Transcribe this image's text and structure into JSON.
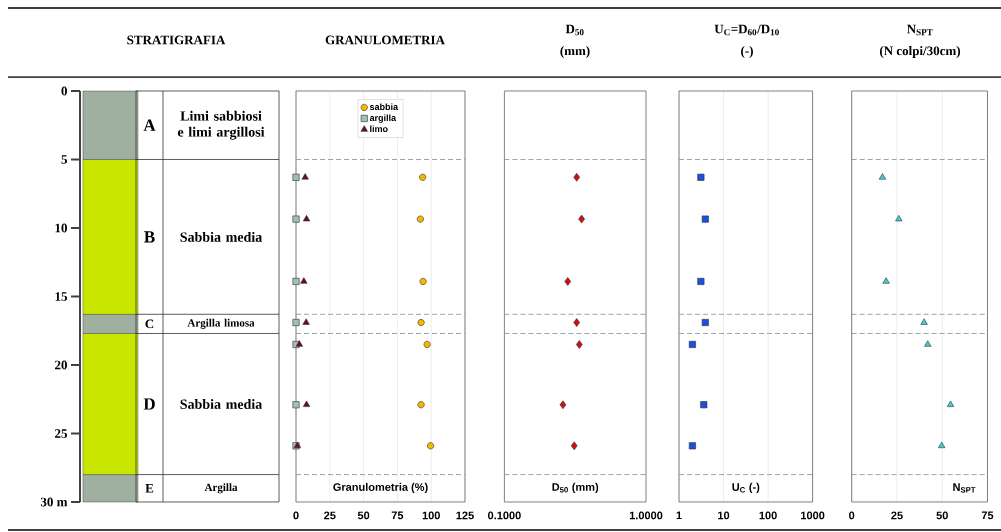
{
  "chart_data": [
    {
      "type": "bar",
      "stacked": true,
      "title": "STRATIGRAFIA",
      "categories": [
        null
      ],
      "ylim": [
        30,
        0
      ],
      "yticks": [
        0,
        5,
        10,
        15,
        20,
        25,
        {
          "value": 30,
          "label": "30 m"
        }
      ],
      "tick_labels": "y",
      "series": [
        {
          "name": "A",
          "color": "#9fb0a0",
          "values": [
            5
          ]
        },
        {
          "name": "B",
          "color": "#c8e600",
          "values": [
            11.3
          ]
        },
        {
          "name": "C",
          "color": "#9fb0a0",
          "values": [
            1.4
          ]
        },
        {
          "name": "D",
          "color": "#c8e600",
          "values": [
            10.3
          ]
        },
        {
          "name": "E",
          "color": "#9fb0a0",
          "values": [
            2
          ]
        }
      ],
      "annotations": [
        "Limi sabbiosi e limi argillosi",
        "Sabbia media",
        "Argilla limosa",
        "Sabbia media",
        "Argilla"
      ]
    },
    {
      "type": "scatter",
      "title": "GRANULOMETRIA",
      "xlabel": "Granulometria (%)",
      "xlim": [
        0,
        125
      ],
      "xticks": [
        0,
        25,
        50,
        75,
        100,
        125
      ],
      "ylim": [
        30,
        0
      ],
      "tick_labels": "x",
      "grid": "x",
      "legend": "top",
      "ref_lines": [
        {
          "axis": "y",
          "value": 5,
          "color": "#7f9f9f",
          "line_style": "dashed"
        },
        {
          "axis": "y",
          "value": 16.3,
          "color": "#7f9f9f",
          "line_style": "dashed"
        },
        {
          "axis": "y",
          "value": 17.7,
          "color": "#7f9f9f",
          "line_style": "dashed"
        },
        {
          "axis": "y",
          "value": 28,
          "color": "#7f9f9f",
          "line_style": "dashed"
        }
      ],
      "series": [
        {
          "name": "sabbia",
          "color": "#f5b800",
          "marker": "circle",
          "x": [
            93.7,
            92,
            94,
            92.5,
            97,
            92.5,
            99.5
          ],
          "values": [
            6.3,
            9.35,
            13.9,
            16.9,
            18.5,
            22.9,
            25.9
          ]
        },
        {
          "name": "argilla",
          "color": "#9fbfbf",
          "marker": "square",
          "x": [
            0,
            0,
            0,
            0,
            0,
            0,
            0
          ],
          "values": [
            6.3,
            9.35,
            13.9,
            16.9,
            18.5,
            22.9,
            25.9
          ]
        },
        {
          "name": "limo",
          "color": "#6b0f1a",
          "marker": "triangle",
          "x": [
            6.8,
            7.8,
            5.8,
            7.5,
            2.5,
            7.8,
            1
          ],
          "values": [
            6.3,
            9.35,
            13.9,
            16.9,
            18.5,
            22.9,
            25.9
          ]
        }
      ]
    },
    {
      "type": "scatter",
      "title": "D$_{50}$",
      "subtitle": "(mm)",
      "xlabel": "D$_{50}$ (mm)",
      "log": "x",
      "xlim": [
        0.1,
        1
      ],
      "xticks": [
        {
          "value": 0.1,
          "label": "0.1000"
        },
        {
          "value": 1,
          "label": "1.0000"
        }
      ],
      "ylim": [
        30,
        0
      ],
      "tick_labels": "x",
      "marker": "diamond",
      "ref_lines": [
        {
          "axis": "y",
          "value": 5,
          "color": "#7f9f9f",
          "line_style": "dashed"
        },
        {
          "axis": "y",
          "value": 16.3,
          "color": "#7f9f9f",
          "line_style": "dashed"
        },
        {
          "axis": "y",
          "value": 17.7,
          "color": "#7f9f9f",
          "line_style": "dashed"
        },
        {
          "axis": "y",
          "value": 28,
          "color": "#7f9f9f",
          "line_style": "dashed"
        }
      ],
      "series": [
        {
          "color": "#d01010",
          "x": [
            0.324,
            0.351,
            0.28,
            0.324,
            0.338,
            0.259,
            0.311
          ],
          "values": [
            6.3,
            9.35,
            13.9,
            16.9,
            18.5,
            22.9,
            25.9
          ]
        }
      ]
    },
    {
      "type": "scatter",
      "title": "U$_{C}$=D$_{60}$/D$_{10}$",
      "subtitle": "(-)",
      "xlabel": "U$_{C}$ (-)",
      "log": "x",
      "xlim": [
        1,
        1000
      ],
      "xticks": [
        1,
        10,
        100,
        1000
      ],
      "ylim": [
        30,
        0
      ],
      "tick_labels": "x",
      "grid": "x",
      "marker": "square",
      "ref_lines": [
        {
          "axis": "y",
          "value": 5,
          "color": "#7f9f9f",
          "line_style": "dashed"
        },
        {
          "axis": "y",
          "value": 16.3,
          "color": "#7f9f9f",
          "line_style": "dashed"
        },
        {
          "axis": "y",
          "value": 17.7,
          "color": "#7f9f9f",
          "line_style": "dashed"
        },
        {
          "axis": "y",
          "value": 28,
          "color": "#7f9f9f",
          "line_style": "dashed"
        }
      ],
      "series": [
        {
          "color": "#1a4fe0",
          "x": [
            3.1,
            3.9,
            3.1,
            3.9,
            2.0,
            3.6,
            2.0
          ],
          "values": [
            6.3,
            9.35,
            13.9,
            16.9,
            18.5,
            22.9,
            25.9
          ]
        }
      ]
    },
    {
      "type": "scatter",
      "title": "N$_{SPT}$",
      "subtitle": "(N colpi/30cm)",
      "xlabel": "N$_{SPT}$",
      "xlim": [
        0,
        75
      ],
      "xticks": [
        0,
        25,
        50,
        75
      ],
      "ylim": [
        30,
        0
      ],
      "tick_labels": "x",
      "grid": "x",
      "marker": "triangle",
      "ref_lines": [
        {
          "axis": "y",
          "value": 5,
          "color": "#7f9f9f",
          "line_style": "dashed"
        },
        {
          "axis": "y",
          "value": 16.3,
          "color": "#7f9f9f",
          "line_style": "dashed"
        },
        {
          "axis": "y",
          "value": 17.7,
          "color": "#7f9f9f",
          "line_style": "dashed"
        },
        {
          "axis": "y",
          "value": 28,
          "color": "#7f9f9f",
          "line_style": "dashed"
        }
      ],
      "series": [
        {
          "color": "#40d0d0",
          "x": [
            17,
            26,
            19,
            40,
            42,
            54.6,
            49.7
          ],
          "values": [
            6.3,
            9.35,
            13.9,
            16.9,
            18.5,
            22.9,
            25.9
          ]
        }
      ]
    }
  ]
}
